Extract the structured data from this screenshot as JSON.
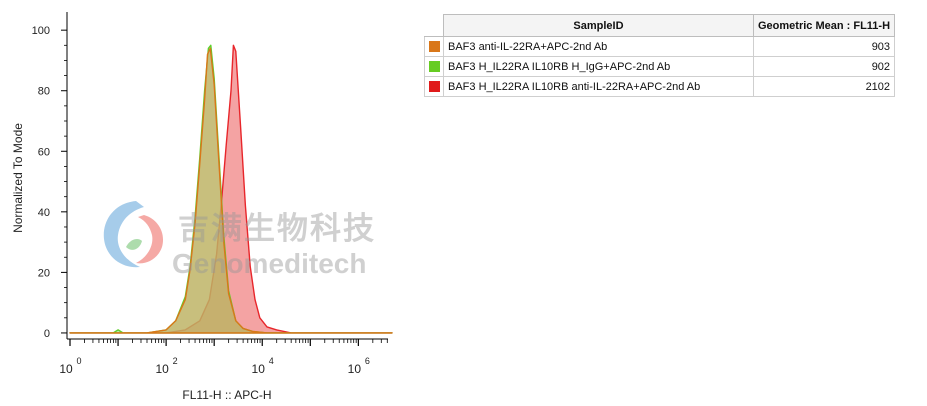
{
  "chart_data": {
    "type": "area",
    "xlabel": "FL11-H :: APC-H",
    "ylabel": "Normalized To Mode",
    "x_scale": "log",
    "xlim": [
      0,
      6.7
    ],
    "ylim": [
      -2,
      106
    ],
    "y_ticks": [
      "0",
      "20",
      "40",
      "60",
      "80",
      "100"
    ],
    "x_ticks": [
      {
        "base": "10",
        "exp": "0"
      },
      {
        "base": "10",
        "exp": "2"
      },
      {
        "base": "10",
        "exp": "4"
      },
      {
        "base": "10",
        "exp": "6"
      }
    ],
    "series": [
      {
        "name": "BAF3 H_IL22RA IL10RB anti-IL-22RA+APC-2nd Ab",
        "color": "#e8262b",
        "fill": "#f08080",
        "x_log10": [
          0.0,
          2.0,
          2.4,
          2.7,
          2.9,
          3.05,
          3.15,
          3.25,
          3.35,
          3.4,
          3.45,
          3.55,
          3.65,
          3.75,
          3.85,
          3.95,
          4.1,
          4.3,
          4.6,
          6.7
        ],
        "y": [
          0,
          0,
          1,
          4,
          11,
          26,
          43,
          62,
          80,
          95,
          93,
          68,
          42,
          22,
          11,
          5,
          2,
          1,
          0,
          0
        ]
      },
      {
        "name": "BAF3 H_IL22RA IL10RB H_IgG+APC-2nd Ab",
        "color": "#5fcf2c",
        "fill": "#9fd87c",
        "x_log10": [
          0.0,
          0.9,
          1.0,
          1.1,
          1.6,
          2.0,
          2.2,
          2.4,
          2.5,
          2.6,
          2.7,
          2.8,
          2.88,
          2.93,
          3.0,
          3.1,
          3.2,
          3.3,
          3.45,
          3.6,
          3.8,
          4.1,
          6.7
        ],
        "y": [
          0,
          0,
          1,
          0,
          0,
          1,
          4,
          12,
          22,
          38,
          58,
          80,
          94,
          95,
          84,
          58,
          32,
          14,
          4,
          1.5,
          0.5,
          0,
          0
        ]
      },
      {
        "name": "BAF3 anti-IL-22RA+APC-2nd Ab",
        "color": "#d97719",
        "fill": "#c9a35c",
        "x_log10": [
          0.0,
          1.6,
          2.0,
          2.2,
          2.4,
          2.5,
          2.6,
          2.7,
          2.8,
          2.86,
          2.92,
          3.0,
          3.1,
          3.2,
          3.3,
          3.45,
          3.6,
          3.8,
          4.1,
          6.7
        ],
        "y": [
          0,
          0,
          1,
          4,
          11,
          21,
          36,
          56,
          77,
          92,
          94,
          82,
          56,
          30,
          13,
          4,
          1.5,
          0.5,
          0,
          0
        ]
      }
    ]
  },
  "legend_table": {
    "columns": [
      "SampleID",
      "Geometric Mean : FL11-H"
    ],
    "rows": [
      {
        "color": "#d97719",
        "sample": "BAF3 anti-IL-22RA+APC-2nd Ab",
        "value": "903"
      },
      {
        "color": "#66cc22",
        "sample": "BAF3 H_IL22RA IL10RB H_IgG+APC-2nd Ab",
        "value": "902"
      },
      {
        "color": "#e01b1b",
        "sample": "BAF3 H_IL22RA IL10RB anti-IL-22RA+APC-2nd Ab",
        "value": "2102"
      }
    ]
  },
  "watermark": {
    "cn": "吉满生物科技",
    "en": "Genomeditech"
  }
}
